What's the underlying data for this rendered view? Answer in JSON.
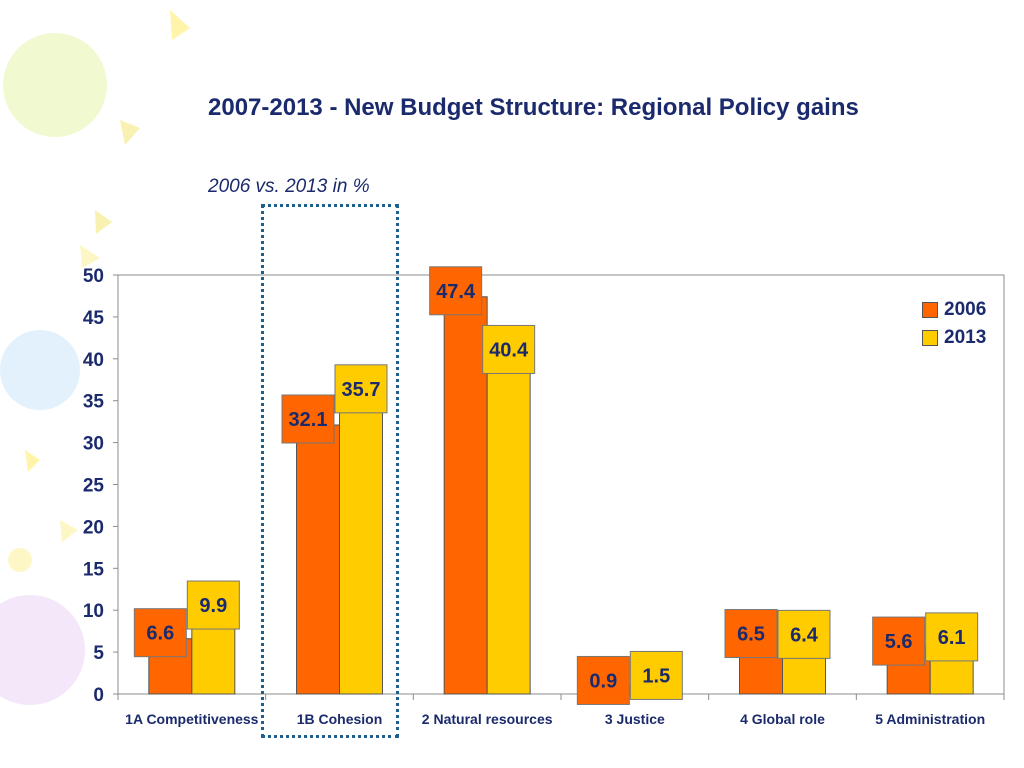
{
  "slide": {
    "title": "2007-2013 - New Budget Structure: Regional Policy gains",
    "subtitle": "2006 vs. 2013 in %"
  },
  "colors": {
    "title": "#1a2a6c",
    "series_2006": "#ff6600",
    "series_2013": "#ffcc00",
    "label_text": "#1a2a6c",
    "highlight_border": "#1f5f8b"
  },
  "chart_data": {
    "type": "bar",
    "title": "2007-2013 - New Budget Structure: Regional Policy gains",
    "subtitle": "2006 vs. 2013 in %",
    "categories": [
      "1A Competitiveness",
      "1B Cohesion",
      "2 Natural resources",
      "3 Justice",
      "4 Global role",
      "5 Administration"
    ],
    "series": [
      {
        "name": "2006",
        "values": [
          6.6,
          32.1,
          47.4,
          0.9,
          6.5,
          5.6
        ]
      },
      {
        "name": "2013",
        "values": [
          9.9,
          35.7,
          40.4,
          1.5,
          6.4,
          6.1
        ]
      }
    ],
    "ylim": [
      0,
      50
    ],
    "yticks": [
      0,
      5,
      10,
      15,
      20,
      25,
      30,
      35,
      40,
      45,
      50
    ],
    "xlabel": "",
    "ylabel": "",
    "grid": false,
    "legend_position": "top-right",
    "highlighted_category": "1B Cohesion"
  }
}
